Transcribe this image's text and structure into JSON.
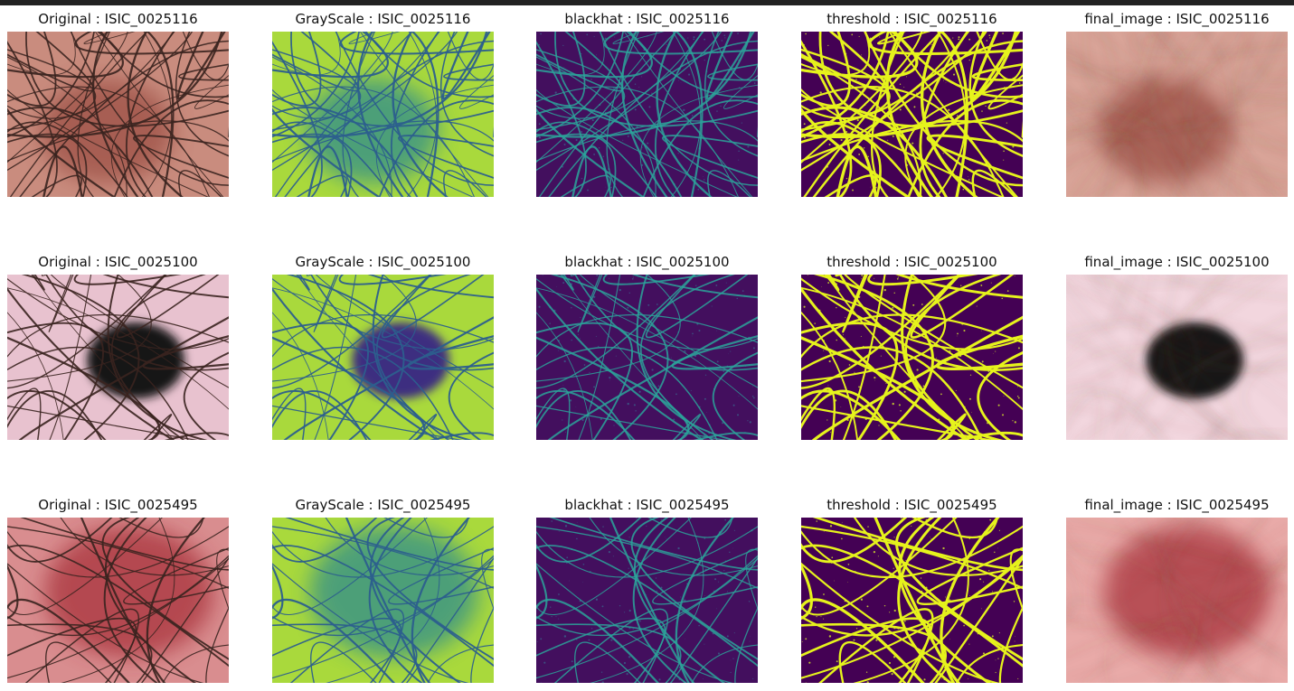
{
  "rows": [
    [
      "Original : ISIC_0025116",
      "GrayScale : ISIC_0025116",
      "blackhat : ISIC_0025116",
      "threshold : ISIC_0025116",
      "final_image : ISIC_0025116"
    ],
    [
      "Original : ISIC_0025100",
      "GrayScale : ISIC_0025100",
      "blackhat : ISIC_0025100",
      "threshold : ISIC_0025100",
      "final_image : ISIC_0025100"
    ],
    [
      "Original : ISIC_0025495",
      "GrayScale : ISIC_0025495",
      "blackhat : ISIC_0025495",
      "threshold : ISIC_0025495",
      "final_image : ISIC_0025495"
    ]
  ]
}
